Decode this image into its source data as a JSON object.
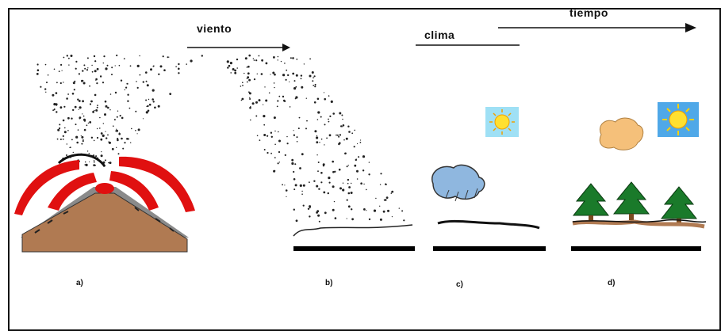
{
  "labels": {
    "viento": "viento",
    "clima": "clima",
    "tiempo": "tiempo"
  },
  "panels": [
    {
      "id": "a",
      "label": "a)"
    },
    {
      "id": "b",
      "label": "b)"
    },
    {
      "id": "c",
      "label": "c)"
    },
    {
      "id": "d",
      "label": "d)"
    }
  ],
  "colors": {
    "lava": "#e01010",
    "volcano": "#b07a52",
    "ash_rim": "#8a8a8a",
    "sky_box": "#9fe0f5",
    "sun": "#ffe030",
    "rain_cloud": "#8fb7df",
    "cloud": "#f5c07a",
    "tree": "#1a7a2a",
    "soil": "#b07a52",
    "ground": "#000000"
  }
}
